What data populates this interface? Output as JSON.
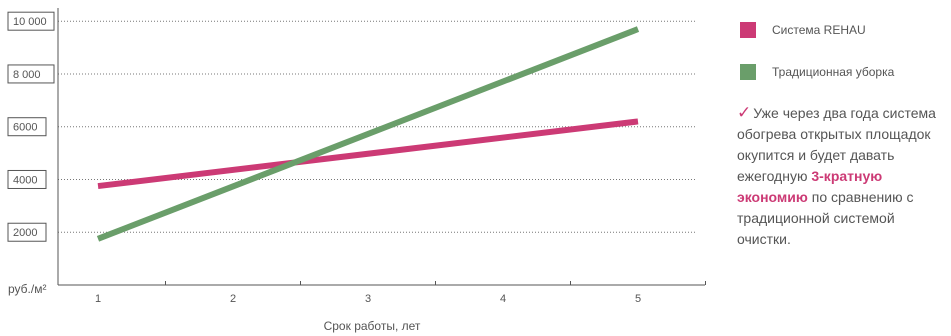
{
  "chart_data": {
    "type": "line",
    "x": [
      1,
      5
    ],
    "series": [
      {
        "name": "Система REHAU",
        "color": "#cc3a75",
        "values": [
          3750,
          6200
        ]
      },
      {
        "name": "Традиционная уборка",
        "color": "#6a9e6a",
        "values": [
          1750,
          9700
        ]
      }
    ],
    "yticks": [
      {
        "value": 2000,
        "label": "2000"
      },
      {
        "value": 4000,
        "label": "4000"
      },
      {
        "value": 6000,
        "label": "6000"
      },
      {
        "value": 8000,
        "label": "8 000"
      },
      {
        "value": 10000,
        "label": "10 000"
      }
    ],
    "xticks": [
      "1",
      "2",
      "3",
      "4",
      "5"
    ],
    "ylim": [
      0,
      10500
    ],
    "xlabel": "Срок работы, лет",
    "yunit": "руб./м²",
    "grid": "dotted horizontal"
  },
  "legend": {
    "items": [
      {
        "label": "Система REHAU",
        "color": "#cc3a75"
      },
      {
        "label": "Традиционная уборка",
        "color": "#6a9e6a"
      }
    ]
  },
  "note": {
    "text_before": "Уже через два года система обогрева открытых площадок окупится и будет давать ежегодную ",
    "highlight": "3-кратную экономию",
    "text_after": " по сравнению с традиционной системой очистки."
  }
}
